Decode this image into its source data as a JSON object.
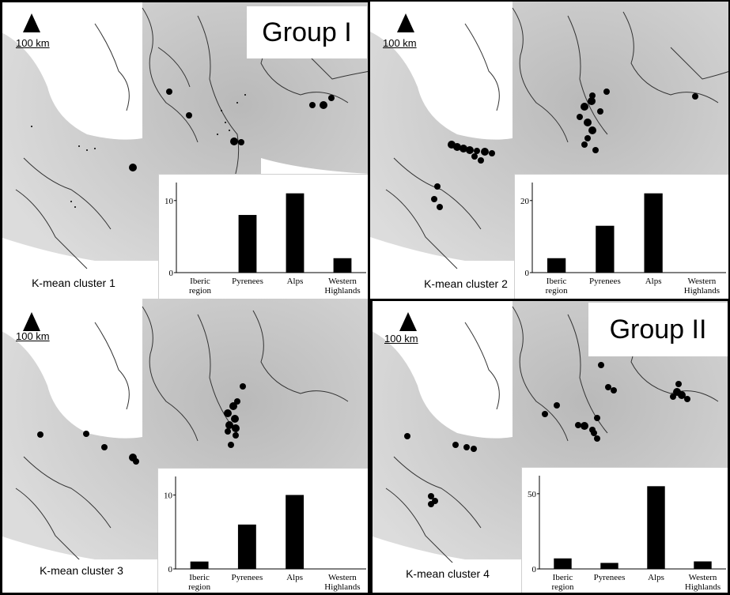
{
  "scale_label": "100 km",
  "groups": [
    "Group I",
    "Group II"
  ],
  "panels": [
    {
      "cluster_label": "K-mean cluster 1"
    },
    {
      "cluster_label": "K-mean cluster 2"
    },
    {
      "cluster_label": "K-mean cluster 3"
    },
    {
      "cluster_label": "K-mean cluster 4"
    }
  ],
  "chart_data": [
    {
      "type": "bar",
      "categories": [
        "Iberic region",
        "Pyrenees",
        "Alps",
        "Western Highlands"
      ],
      "values": [
        0,
        8,
        11,
        2
      ],
      "yticks": [
        0,
        10
      ],
      "ylim": [
        0,
        12.5
      ]
    },
    {
      "type": "bar",
      "categories": [
        "Iberic region",
        "Pyrenees",
        "Alps",
        "Western Highlands"
      ],
      "values": [
        4,
        13,
        22,
        0
      ],
      "yticks": [
        0,
        20
      ],
      "ylim": [
        0,
        25
      ]
    },
    {
      "type": "bar",
      "categories": [
        "Iberic region",
        "Pyrenees",
        "Alps",
        "Western Highlands"
      ],
      "values": [
        1,
        6,
        10,
        0
      ],
      "yticks": [
        0,
        10
      ],
      "ylim": [
        0,
        12.5
      ]
    },
    {
      "type": "bar",
      "categories": [
        "Iberic region",
        "Pyrenees",
        "Alps",
        "Western Highlands"
      ],
      "values": [
        7,
        4,
        55,
        5
      ],
      "yticks": [
        0,
        50
      ],
      "ylim": [
        0,
        62
      ]
    }
  ]
}
